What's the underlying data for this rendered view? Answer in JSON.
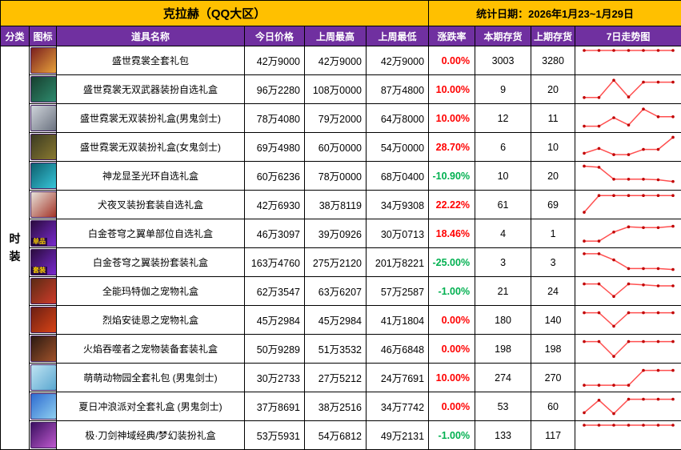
{
  "header": {
    "title": "克拉赫（QQ大区）",
    "stats_date": "统计日期：2026年1月23~1月29日"
  },
  "columns": [
    "分类",
    "图标",
    "道具名称",
    "今日价格",
    "上周最高",
    "上周最低",
    "涨跌率",
    "本期存货",
    "上期存货",
    "7日走势图"
  ],
  "category": "时装",
  "colors": {
    "title_bg": "#FFC000",
    "header_bg": "#7030A0",
    "header_text": "#FFFFFF",
    "up": "#FF0000",
    "down": "#00B050",
    "spark_line": "#FF5050",
    "spark_marker": "#C00000",
    "border": "#000000"
  },
  "rows": [
    {
      "name": "盛世霓裳全套礼包",
      "today": "42万9000",
      "week_high": "42万9000",
      "week_low": "42万9000",
      "change": "0.00%",
      "trend": "up",
      "stock_now": "3003",
      "stock_prev": "3280",
      "icon": {
        "c1": "#7a1f1f",
        "c2": "#e8a23a"
      },
      "badge": "",
      "spark": [
        1,
        1,
        1,
        1,
        1,
        1,
        1
      ]
    },
    {
      "name": "盛世霓裳无双武器装扮自选礼盒",
      "today": "96万2280",
      "week_high": "108万0000",
      "week_low": "87万4800",
      "change": "10.00%",
      "trend": "up",
      "stock_now": "9",
      "stock_prev": "20",
      "icon": {
        "c1": "#173f2e",
        "c2": "#2e8b6e"
      },
      "badge": "",
      "spark": [
        0.05,
        0.05,
        0.95,
        0.08,
        0.85,
        0.85,
        0.85
      ]
    },
    {
      "name": "盛世霓裳无双装扮礼盒(男鬼剑士)",
      "today": "78万4080",
      "week_high": "79万2000",
      "week_low": "64万8000",
      "change": "10.00%",
      "trend": "up",
      "stock_now": "12",
      "stock_prev": "11",
      "icon": {
        "c1": "#cfd4da",
        "c2": "#6b7280"
      },
      "badge": "",
      "spark": [
        0.06,
        0.06,
        0.5,
        0.12,
        0.95,
        0.55,
        0.55
      ]
    },
    {
      "name": "盛世霓裳无双装扮礼盒(女鬼剑士)",
      "today": "69万4980",
      "week_high": "60万0000",
      "week_low": "54万0000",
      "change": "28.70%",
      "trend": "up",
      "stock_now": "6",
      "stock_prev": "10",
      "icon": {
        "c1": "#3b3a22",
        "c2": "#8a7a30"
      },
      "badge": "",
      "spark": [
        0.15,
        0.4,
        0.08,
        0.08,
        0.35,
        0.35,
        0.98
      ]
    },
    {
      "name": "神龙显圣光环自选礼盒",
      "today": "60万6236",
      "week_high": "78万0000",
      "week_low": "68万0400",
      "change": "-10.90%",
      "trend": "down",
      "stock_now": "10",
      "stock_prev": "20",
      "icon": {
        "c1": "#0e5f6e",
        "c2": "#36c6d9"
      },
      "badge": "",
      "spark": [
        0.98,
        0.92,
        0.3,
        0.3,
        0.3,
        0.27,
        0.18
      ]
    },
    {
      "name": "犬夜叉装扮套装自选礼盒",
      "today": "42万6930",
      "week_high": "38万8119",
      "week_low": "34万9308",
      "change": "22.22%",
      "trend": "up",
      "stock_now": "61",
      "stock_prev": "69",
      "icon": {
        "c1": "#e8e3da",
        "c2": "#a33327"
      },
      "badge": "",
      "spark": [
        0.08,
        0.95,
        0.95,
        0.95,
        0.95,
        0.95,
        0.95
      ]
    },
    {
      "name": "白金苍穹之翼单部位自选礼盒",
      "today": "46万3097",
      "week_high": "39万0926",
      "week_low": "30万0713",
      "change": "18.46%",
      "trend": "up",
      "stock_now": "4",
      "stock_prev": "1",
      "icon": {
        "c1": "#2a0b3d",
        "c2": "#7a2bd0"
      },
      "badge": "单品",
      "spark": [
        0.08,
        0.08,
        0.55,
        0.82,
        0.78,
        0.78,
        0.85
      ]
    },
    {
      "name": "白金苍穹之翼装扮套装礼盒",
      "today": "163万4760",
      "week_high": "275万2120",
      "week_low": "201万8221",
      "change": "-25.00%",
      "trend": "down",
      "stock_now": "3",
      "stock_prev": "3",
      "icon": {
        "c1": "#2a0b3d",
        "c2": "#7a2bd0"
      },
      "badge": "套装",
      "spark": [
        0.92,
        0.92,
        0.6,
        0.15,
        0.15,
        0.15,
        0.1
      ]
    },
    {
      "name": "全能玛特伽之宠物礼盒",
      "today": "62万3547",
      "week_high": "63万6207",
      "week_low": "57万2587",
      "change": "-1.00%",
      "trend": "down",
      "stock_now": "21",
      "stock_prev": "24",
      "icon": {
        "c1": "#5a2b14",
        "c2": "#cf3b2a"
      },
      "badge": "",
      "spark": [
        0.85,
        0.85,
        0.2,
        0.85,
        0.8,
        0.75,
        0.75
      ]
    },
    {
      "name": "烈焰安徒恩之宠物礼盒",
      "today": "45万2984",
      "week_high": "45万2984",
      "week_low": "41万1804",
      "change": "0.00%",
      "trend": "up",
      "stock_now": "180",
      "stock_prev": "140",
      "icon": {
        "c1": "#6b1f14",
        "c2": "#d84315"
      },
      "badge": "",
      "spark": [
        0.85,
        0.85,
        0.15,
        0.85,
        0.85,
        0.85,
        0.85
      ]
    },
    {
      "name": "火焰吞噬者之宠物装备套装礼盒",
      "today": "50万9289",
      "week_high": "51万3532",
      "week_low": "46万6848",
      "change": "0.00%",
      "trend": "up",
      "stock_now": "198",
      "stock_prev": "198",
      "icon": {
        "c1": "#2b1a12",
        "c2": "#a1522a"
      },
      "badge": "",
      "spark": [
        0.85,
        0.85,
        0.08,
        0.85,
        0.85,
        0.85,
        0.85
      ]
    },
    {
      "name": "萌萌动物园全套礼包 (男鬼剑士)",
      "today": "30万2733",
      "week_high": "27万5212",
      "week_low": "24万7691",
      "change": "10.00%",
      "trend": "up",
      "stock_now": "274",
      "stock_prev": "270",
      "icon": {
        "c1": "#bfe3f2",
        "c2": "#5aa7d0"
      },
      "badge": "",
      "spark": [
        0.08,
        0.08,
        0.08,
        0.08,
        0.85,
        0.85,
        0.85
      ]
    },
    {
      "name": "夏日冲浪派对全套礼盒 (男鬼剑士)",
      "today": "37万8691",
      "week_high": "38万2516",
      "week_low": "34万7742",
      "change": "0.00%",
      "trend": "up",
      "stock_now": "53",
      "stock_prev": "60",
      "icon": {
        "c1": "#2e6bd0",
        "c2": "#8fd0f0"
      },
      "badge": "",
      "spark": [
        0.15,
        0.8,
        0.1,
        0.85,
        0.85,
        0.85,
        0.85
      ]
    },
    {
      "name": "极·刀剑神域经典/梦幻装扮礼盒",
      "today": "53万5931",
      "week_high": "54万6812",
      "week_low": "49万2131",
      "change": "-1.00%",
      "trend": "down",
      "stock_now": "133",
      "stock_prev": "117",
      "icon": {
        "c1": "#3a1060",
        "c2": "#c05ad0"
      },
      "badge": "",
      "spark": [
        1,
        1,
        1,
        1,
        1,
        1,
        1
      ]
    }
  ],
  "chart_data": {
    "type": "line",
    "note": "7-day trend sparklines, one per row, red line with dark-red markers; values normalized 0-1 as read from pixels",
    "series_key": "rows[].spark"
  }
}
